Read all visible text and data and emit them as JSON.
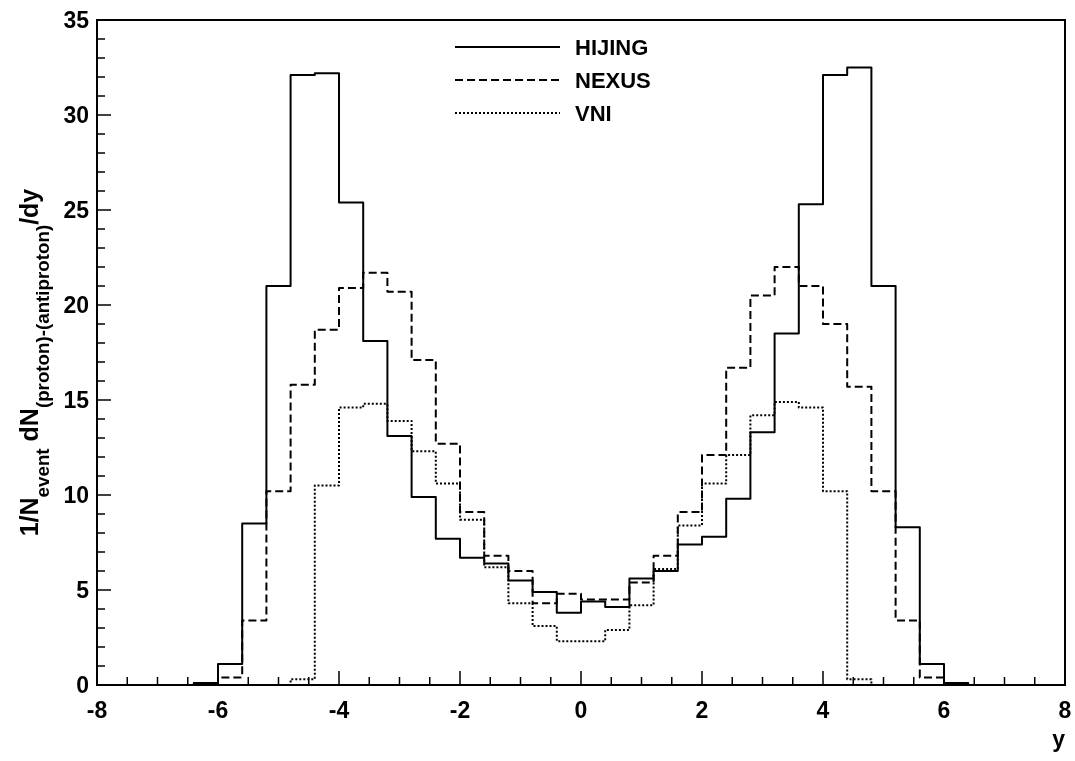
{
  "chart_data": {
    "type": "step",
    "xlabel": "y",
    "ylabel": "1/N$_{event}$ dN$_{(proton)-(antiproton)}$/dy",
    "x": [
      -8,
      -7.6,
      -7.2,
      -6.8,
      -6.4,
      -6,
      -5.6,
      -5.2,
      -4.8,
      -4.4,
      -4,
      -3.6,
      -3.2,
      -2.8,
      -2.4,
      -2,
      -1.6,
      -1.2,
      -0.8,
      -0.4,
      0,
      0.4,
      0.8,
      1.2,
      1.6,
      2,
      2.4,
      2.8,
      3.2,
      3.6,
      4,
      4.4,
      4.8,
      5.2,
      5.6,
      6,
      6.4,
      6.8,
      7.2,
      7.6
    ],
    "series": [
      {
        "name": "HIJING",
        "color": "#000000",
        "line_style": "solid",
        "values": [
          0,
          0,
          0,
          0,
          0.1,
          1.1,
          8.5,
          21.0,
          32.1,
          32.2,
          25.4,
          18.1,
          13.1,
          9.9,
          7.7,
          6.7,
          6.4,
          5.5,
          4.9,
          3.8,
          4.4,
          4.1,
          5.6,
          6.0,
          7.4,
          7.8,
          9.8,
          13.3,
          18.5,
          25.3,
          32.1,
          32.5,
          21.0,
          8.3,
          1.1,
          0.1,
          0,
          0,
          0,
          0
        ]
      },
      {
        "name": "NEXUS",
        "color": "#000000",
        "line_style": "dashed",
        "values": [
          0,
          0,
          0,
          0,
          0,
          0.4,
          3.4,
          10.2,
          15.8,
          18.7,
          20.9,
          21.7,
          20.7,
          17.1,
          12.7,
          9.1,
          6.8,
          6.0,
          4.3,
          4.8,
          4.5,
          4.5,
          5.4,
          6.8,
          9.1,
          12.1,
          16.7,
          20.5,
          22.0,
          21.0,
          19.0,
          15.7,
          10.2,
          3.4,
          0.4,
          0,
          0,
          0,
          0,
          0
        ]
      },
      {
        "name": "VNI",
        "color": "#000000",
        "line_style": "dotted",
        "values": [
          0,
          0,
          0,
          0,
          0,
          0,
          0,
          0,
          0.3,
          10.5,
          14.6,
          14.8,
          13.9,
          12.3,
          10.6,
          8.7,
          6.2,
          4.3,
          3.1,
          2.3,
          2.3,
          2.9,
          4.2,
          6.1,
          8.4,
          10.6,
          12.1,
          14.2,
          14.9,
          14.6,
          10.2,
          0.3,
          0,
          0,
          0,
          0,
          0,
          0,
          0,
          0
        ]
      }
    ],
    "xlim": [
      -8,
      8
    ],
    "xticks": [
      -8,
      {
        "value": -7.5,
        "label": null
      },
      {
        "value": -7,
        "label": null
      },
      {
        "value": -6.5,
        "label": null
      },
      -6,
      {
        "value": -5.5,
        "label": null
      },
      {
        "value": -5,
        "label": null
      },
      {
        "value": -4.5,
        "label": null
      },
      -4,
      {
        "value": -3.5,
        "label": null
      },
      {
        "value": -3,
        "label": null
      },
      {
        "value": -2.5,
        "label": null
      },
      -2,
      {
        "value": -1.5,
        "label": null
      },
      {
        "value": -1,
        "label": null
      },
      {
        "value": -0.5,
        "label": null
      },
      0,
      {
        "value": 0.5,
        "label": null
      },
      {
        "value": 1,
        "label": null
      },
      {
        "value": 1.5,
        "label": null
      },
      2,
      {
        "value": 2.5,
        "label": null
      },
      {
        "value": 3,
        "label": null
      },
      {
        "value": 3.5,
        "label": null
      },
      4,
      {
        "value": 4.5,
        "label": null
      },
      {
        "value": 5,
        "label": null
      },
      {
        "value": 5.5,
        "label": null
      },
      6,
      {
        "value": 6.5,
        "label": null
      },
      {
        "value": 7,
        "label": null
      },
      {
        "value": 7.5,
        "label": null
      },
      8
    ],
    "ylim": [
      0,
      35
    ],
    "yticks": [
      0,
      {
        "value": 1,
        "label": null
      },
      {
        "value": 2,
        "label": null
      },
      {
        "value": 3,
        "label": null
      },
      {
        "value": 4,
        "label": null
      },
      5,
      {
        "value": 6,
        "label": null
      },
      {
        "value": 7,
        "label": null
      },
      {
        "value": 8,
        "label": null
      },
      {
        "value": 9,
        "label": null
      },
      10,
      {
        "value": 11,
        "label": null
      },
      {
        "value": 12,
        "label": null
      },
      {
        "value": 13,
        "label": null
      },
      {
        "value": 14,
        "label": null
      },
      15,
      {
        "value": 16,
        "label": null
      },
      {
        "value": 17,
        "label": null
      },
      {
        "value": 18,
        "label": null
      },
      {
        "value": 19,
        "label": null
      },
      20,
      {
        "value": 21,
        "label": null
      },
      {
        "value": 22,
        "label": null
      },
      {
        "value": 23,
        "label": null
      },
      {
        "value": 24,
        "label": null
      },
      25,
      {
        "value": 26,
        "label": null
      },
      {
        "value": 27,
        "label": null
      },
      {
        "value": 28,
        "label": null
      },
      {
        "value": 29,
        "label": null
      },
      30,
      {
        "value": 31,
        "label": null
      },
      {
        "value": 32,
        "label": null
      },
      {
        "value": 33,
        "label": null
      },
      {
        "value": 34,
        "label": null
      },
      35
    ],
    "legend": "top",
    "grid": false
  }
}
